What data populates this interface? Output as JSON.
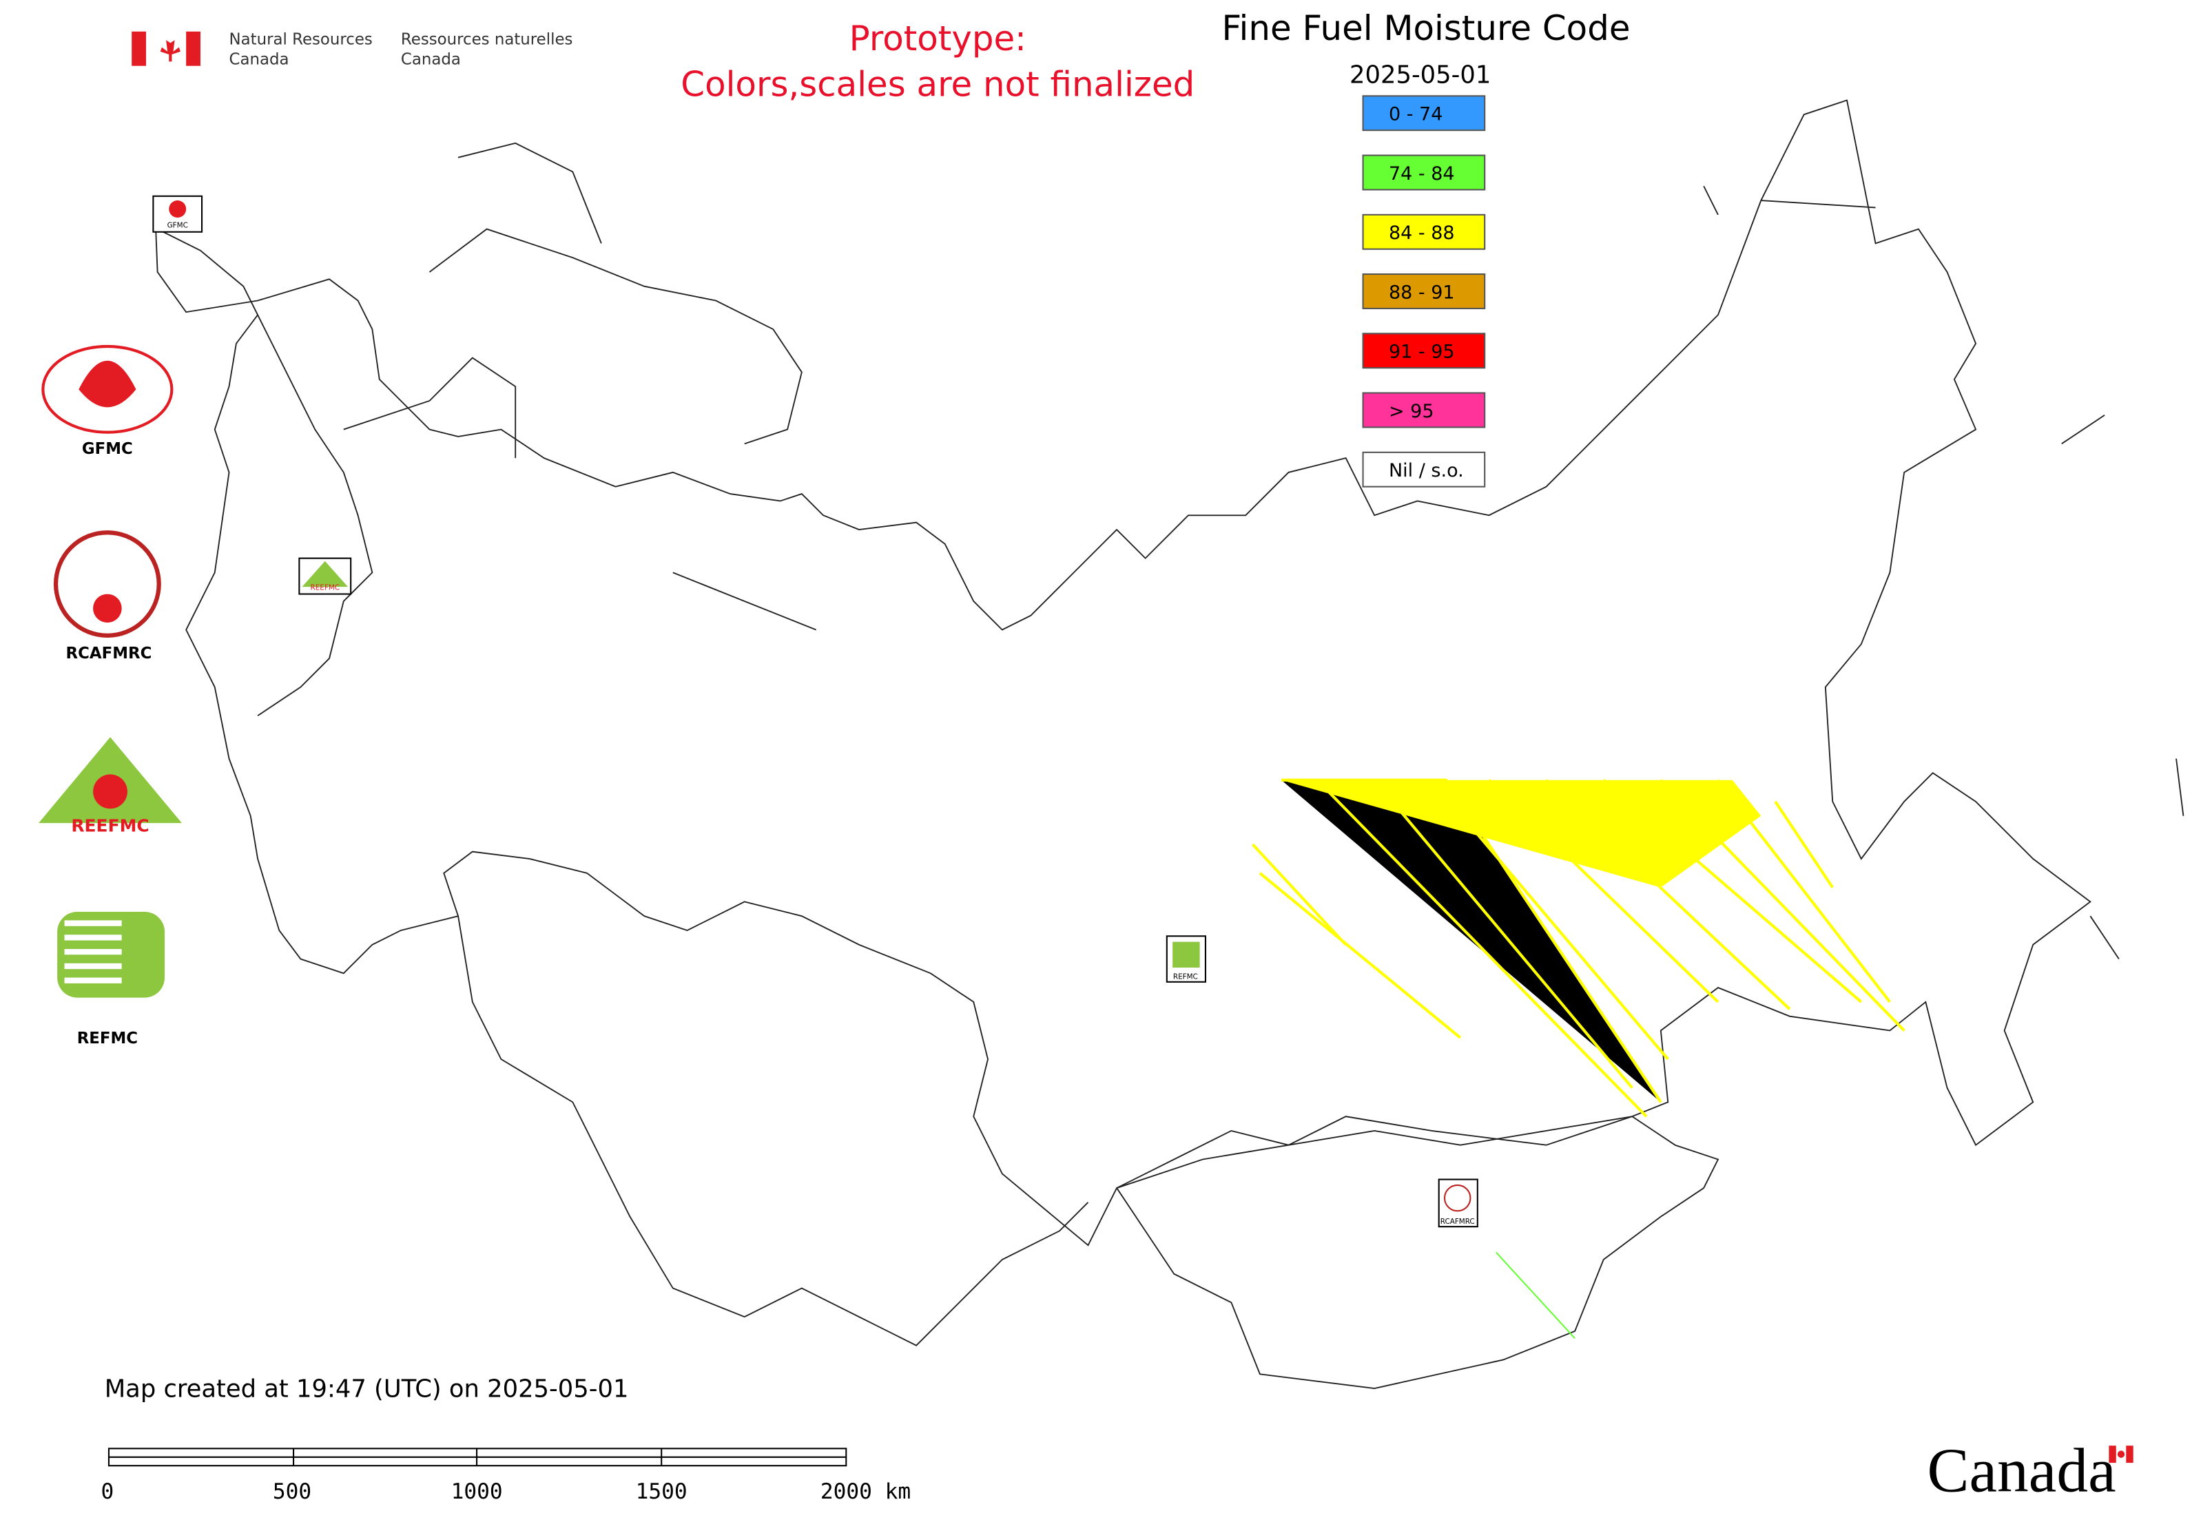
{
  "header": {
    "department_en": [
      "Natural Resources",
      "Canada"
    ],
    "department_fr": [
      "Ressources naturelles",
      "Canada"
    ],
    "notice": [
      "Prototype:",
      "Colors,scales are not finalized"
    ],
    "title": "Fine Fuel Moisture Code",
    "date": "2025-05-01"
  },
  "legend": [
    {
      "label": "0 - 74",
      "color": "#3399ff"
    },
    {
      "label": "74 - 84",
      "color": "#66ff33"
    },
    {
      "label": "84 - 88",
      "color": "#ffff00"
    },
    {
      "label": "88 - 91",
      "color": "#dd9900"
    },
    {
      "label": "91 - 95",
      "color": "#ff0000"
    },
    {
      "label": "> 95",
      "color": "#ff3399"
    },
    {
      "label": "Nil / s.o.",
      "color": "#ffffff"
    }
  ],
  "logos": [
    {
      "label": "GFMC"
    },
    {
      "label": "RCAFMRC"
    },
    {
      "label": "REEFMC"
    },
    {
      "label": "REFMC"
    }
  ],
  "map_markers": [
    "GFMC",
    "REEFMC",
    "REFMC",
    "RCAFMRC"
  ],
  "footer": {
    "created": "Map created at 19:47 (UTC) on 2025-05-01",
    "wordmark": "Canada"
  },
  "scale_bar": {
    "labels": [
      "0",
      "500",
      "1000",
      "1500",
      "2000 km"
    ]
  }
}
